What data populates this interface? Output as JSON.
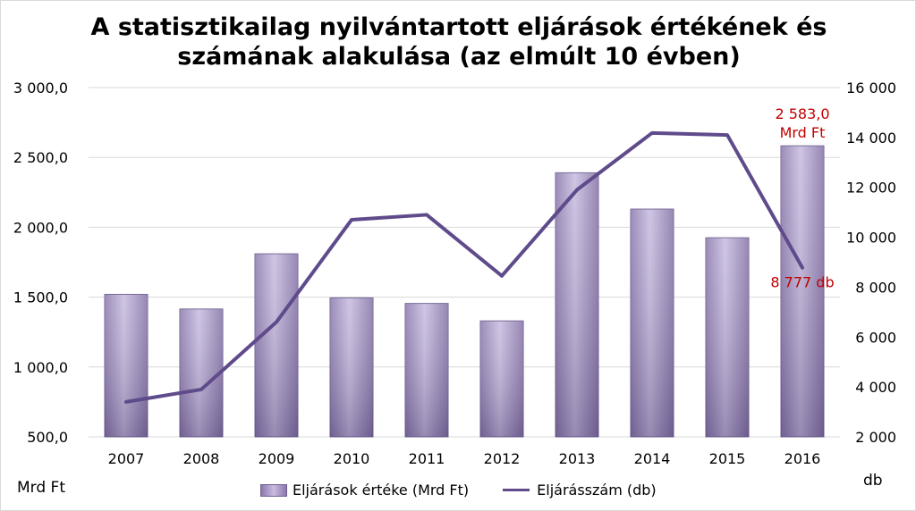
{
  "chart_data": {
    "type": "bar+line",
    "title_line1": "A statisztikailag nyilvántartott eljárások értékének és",
    "title_line2": "számának alakulása (az elmúlt 10 évben)",
    "categories": [
      "2007",
      "2008",
      "2009",
      "2010",
      "2011",
      "2012",
      "2013",
      "2014",
      "2015",
      "2016"
    ],
    "series": [
      {
        "name": "Eljárások értéke (Mrd Ft)",
        "type": "bar",
        "axis": "left",
        "values": [
          1520,
          1415,
          1810,
          1495,
          1455,
          1330,
          2390,
          2130,
          1925,
          2583.0
        ]
      },
      {
        "name": "Eljárásszám (db)",
        "type": "line",
        "axis": "right",
        "values": [
          3400,
          3900,
          6600,
          10700,
          10900,
          8450,
          11900,
          14180,
          14100,
          8777
        ]
      }
    ],
    "left_axis": {
      "unit": "Mrd Ft",
      "ylim": [
        500,
        3000
      ],
      "ticks": [
        "500,0",
        "1 000,0",
        "1 500,0",
        "2 000,0",
        "2 500,0",
        "3 000,0"
      ]
    },
    "right_axis": {
      "unit": "db",
      "ylim": [
        2000,
        16000
      ],
      "ticks": [
        "2 000",
        "4 000",
        "6 000",
        "8 000",
        "10 000",
        "12 000",
        "14 000",
        "16 000"
      ]
    },
    "annotations": {
      "bar_last_line1": "2 583,0",
      "bar_last_line2": "Mrd Ft",
      "line_last": "8 777 db"
    },
    "grid": true,
    "legend_position": "bottom",
    "colors": {
      "bar": "#9a8abb",
      "line": "#5f4b8b",
      "annotation": "#c00000",
      "grid": "#d9d9d9"
    }
  }
}
